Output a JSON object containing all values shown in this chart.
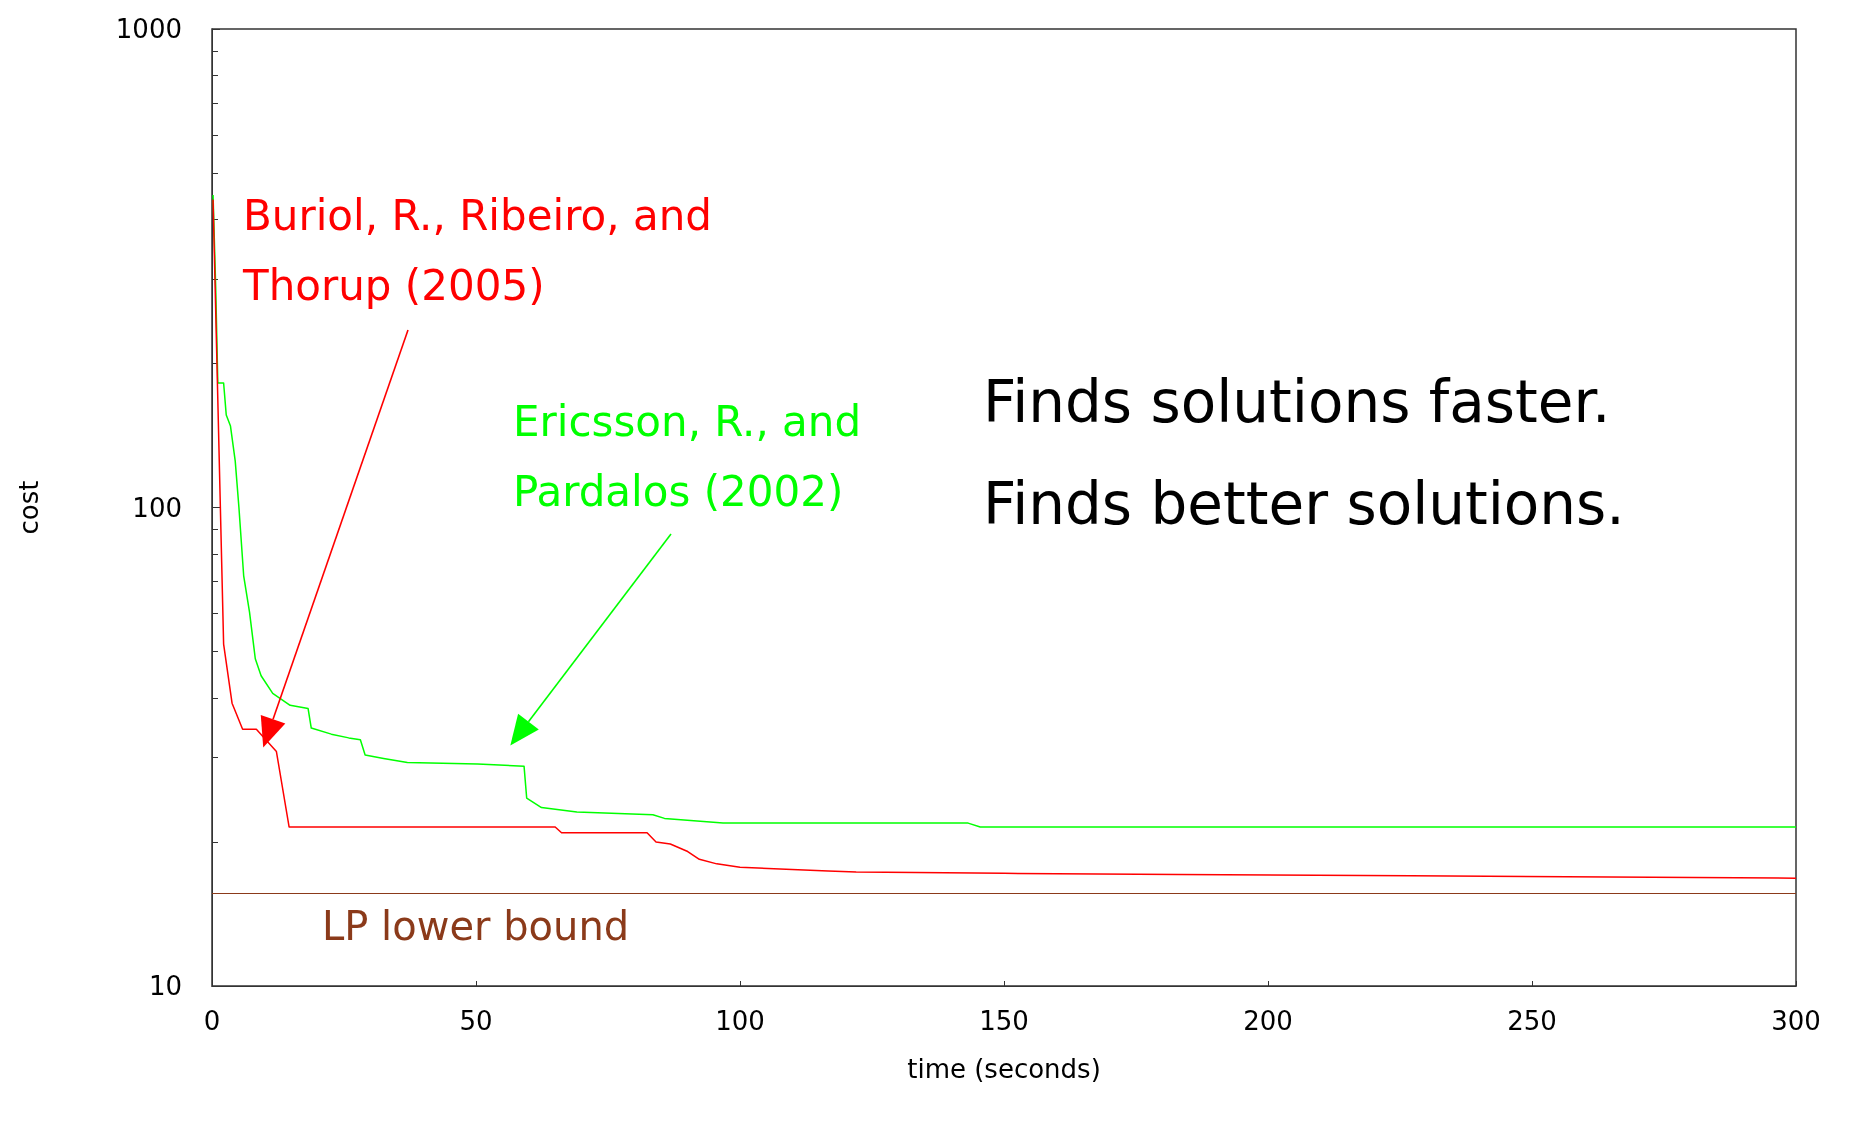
{
  "chart_data": {
    "type": "line",
    "xlabel": "time (seconds)",
    "ylabel": "cost",
    "log": "y",
    "grid": false,
    "legend": false,
    "marker": "none",
    "line_style": "solid",
    "xlim": [
      0,
      300
    ],
    "xticks": [
      0,
      50,
      100,
      150,
      200,
      250,
      300
    ],
    "ylim": [
      10,
      1000
    ],
    "yticks": [
      10,
      100,
      1000
    ],
    "series": [
      {
        "name": "Buriol, R., Ribeiro, and Thorup (2005)",
        "color": "#ff0000",
        "x": [
          0.2,
          2.2,
          3.8,
          5.8,
          8.4,
          12.2,
          14.6,
          65,
          66.2,
          82.4,
          84.1,
          86.8,
          90.1,
          92.3,
          95.6,
          100,
          116.7,
          122,
          150,
          183,
          227,
          300
        ],
        "values": [
          440,
          51.8,
          39,
          34.4,
          34.4,
          30.9,
          21.5,
          21.5,
          20.9,
          20.9,
          20,
          19.8,
          19.1,
          18.4,
          18,
          17.7,
          17.4,
          17.3,
          17.2,
          17.1,
          17,
          16.8
        ]
      },
      {
        "name": "Ericsson, R., and Pardalos (2002)",
        "color": "#00ff00",
        "x": [
          0.2,
          0.7,
          1.1,
          2.2,
          2.7,
          3.5,
          4.4,
          5.1,
          6.0,
          7.1,
          8.2,
          9.3,
          11.5,
          14.8,
          18.2,
          18.8,
          22.6,
          25.9,
          28.1,
          29.0,
          32.5,
          37.0,
          50.3,
          59.1,
          59.6,
          62.4,
          69.1,
          83.5,
          85.7,
          96.8,
          143.2,
          145.5,
          300
        ],
        "values": [
          450,
          289,
          182,
          182,
          156,
          148,
          125,
          100,
          72,
          60.5,
          48.3,
          44.5,
          40.9,
          38.6,
          38,
          34.6,
          33.6,
          33,
          32.7,
          30.4,
          29.9,
          29.3,
          29.1,
          28.8,
          24.7,
          23.6,
          23.1,
          22.8,
          22.4,
          21.9,
          21.9,
          21.5,
          21.5
        ]
      }
    ],
    "ref_lines": [
      {
        "axis": "y",
        "value": 15.6,
        "label": "LP lower bound",
        "color": "#8b3a1a"
      }
    ],
    "annotations": [
      "Finds solutions faster.",
      "Finds better solutions."
    ]
  }
}
